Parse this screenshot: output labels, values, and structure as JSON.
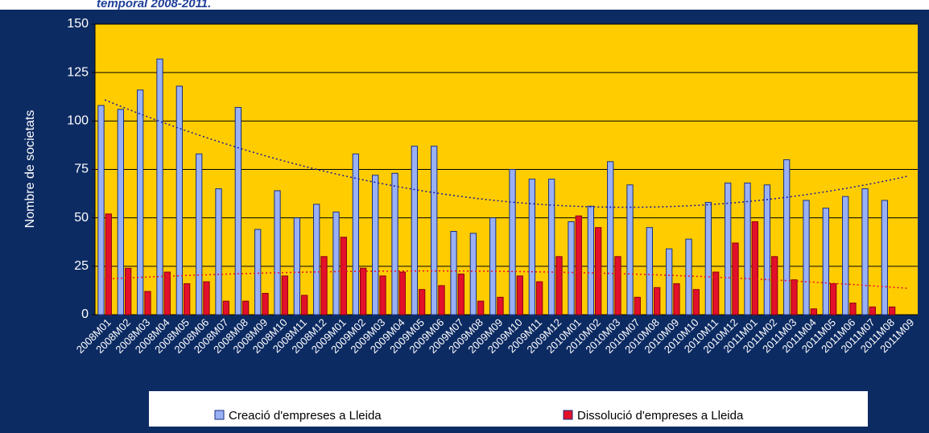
{
  "chart_data": {
    "type": "bar",
    "title": "temporal 2008-2011.",
    "y_label": "Nombre de societats",
    "categories": [
      "2008M01",
      "2008M02",
      "2008M03",
      "2008M04",
      "2008M05",
      "2008M06",
      "2008M07",
      "2008M08",
      "2008M09",
      "2008M10",
      "2008M11",
      "2008M12",
      "2009M01",
      "2009M02",
      "2009M03",
      "2009M04",
      "2009M05",
      "2009M06",
      "2009M07",
      "2009M08",
      "2009M09",
      "2009M10",
      "2009M11",
      "2009M12",
      "2010M01",
      "2010M02",
      "2010M03",
      "2010M07",
      "2010M08",
      "2010M09",
      "2010M10",
      "2010M11",
      "2010M12",
      "2011M01",
      "2011M02",
      "2011M03",
      "2011M04",
      "2011M05",
      "2011M06",
      "2011M07",
      "2011M08",
      "2011M09"
    ],
    "series": [
      {
        "name": "Creació d'empreses a Lleida",
        "color": "#99b0f5",
        "trend_color": "#1a1a9a",
        "values": [
          108,
          106,
          116,
          132,
          118,
          83,
          65,
          107,
          44,
          64,
          50,
          57,
          53,
          83,
          72,
          73,
          87,
          87,
          43,
          42,
          50,
          75,
          70,
          70,
          48,
          56,
          79,
          67,
          45,
          34,
          39,
          58,
          68,
          68,
          67,
          80,
          59,
          55,
          61,
          65,
          59,
          null
        ]
      },
      {
        "name": "Dissolució d'empreses a Lleida",
        "color": "#e3102a",
        "trend_color": "#e3102a",
        "values": [
          52,
          24,
          12,
          22,
          16,
          17,
          7,
          7,
          11,
          20,
          10,
          30,
          40,
          24,
          20,
          22,
          13,
          15,
          21,
          7,
          9,
          20,
          17,
          30,
          51,
          45,
          30,
          9,
          14,
          16,
          13,
          22,
          37,
          48,
          30,
          18,
          3,
          16,
          6,
          4,
          4,
          null
        ]
      }
    ],
    "ylim": [
      0,
      150
    ],
    "yticks": [
      0,
      25,
      50,
      75,
      100,
      125,
      150
    ],
    "grid": true,
    "trendline": "polynomial-2"
  }
}
